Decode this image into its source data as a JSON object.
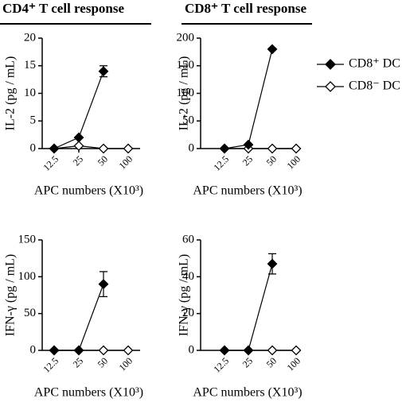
{
  "chart_data": [
    {
      "type": "line",
      "title": "CD4⁺ T cell response",
      "ylabel": "IL-2 (pg / mL)",
      "xlabel": "APC numbers (X10³)",
      "categories": [
        "12.5",
        "25",
        "50",
        "100"
      ],
      "ylim": [
        0,
        20
      ],
      "yticks": [
        0,
        5,
        10,
        15,
        20
      ],
      "series": [
        {
          "color": "#000000",
          "marker": "open-diamond",
          "values": [
            0,
            0.5,
            0,
            0
          ]
        },
        {
          "color": "#000000",
          "marker": "filled-diamond",
          "values": [
            0,
            2,
            14,
            null
          ],
          "errors": [
            null,
            null,
            1,
            null
          ]
        }
      ]
    },
    {
      "type": "line",
      "title": "CD8⁺ T cell response",
      "ylabel": "IL-2 (pg / mL)",
      "xlabel": "APC numbers (X10³)",
      "categories": [
        "12.5",
        "25",
        "50",
        "100"
      ],
      "ylim": [
        0,
        200
      ],
      "yticks": [
        0,
        50,
        100,
        150,
        200
      ],
      "legend": "right",
      "series": [
        {
          "name": "CD8⁻ DC",
          "color": "#000000",
          "marker": "open-diamond",
          "values": [
            0,
            0,
            0,
            0
          ]
        },
        {
          "name": "CD8⁺ DC",
          "color": "#000000",
          "marker": "filled-diamond",
          "values": [
            0,
            7,
            180,
            null
          ]
        }
      ]
    },
    {
      "type": "line",
      "ylabel": "IFN-γ (pg / mL)",
      "xlabel": "APC numbers (X10³)",
      "categories": [
        "12.5",
        "25",
        "50",
        "100"
      ],
      "ylim": [
        0,
        150
      ],
      "yticks": [
        0,
        50,
        100,
        150
      ],
      "series": [
        {
          "color": "#000000",
          "marker": "open-diamond",
          "values": [
            0,
            0,
            0,
            0
          ]
        },
        {
          "color": "#000000",
          "marker": "filled-diamond",
          "values": [
            0,
            0,
            90,
            null
          ],
          "errors": [
            null,
            null,
            17,
            null
          ]
        }
      ]
    },
    {
      "type": "line",
      "ylabel": "IFN-γ (pg / mL)",
      "xlabel": "APC numbers (X10³)",
      "categories": [
        "12.5",
        "25",
        "50",
        "100"
      ],
      "ylim": [
        0,
        60
      ],
      "yticks": [
        0,
        20,
        40,
        60
      ],
      "series": [
        {
          "color": "#000000",
          "marker": "open-diamond",
          "values": [
            0,
            0,
            0,
            0
          ]
        },
        {
          "color": "#000000",
          "marker": "filled-diamond",
          "values": [
            0,
            0,
            47,
            null
          ],
          "errors": [
            null,
            null,
            5.5,
            null
          ]
        }
      ]
    }
  ]
}
